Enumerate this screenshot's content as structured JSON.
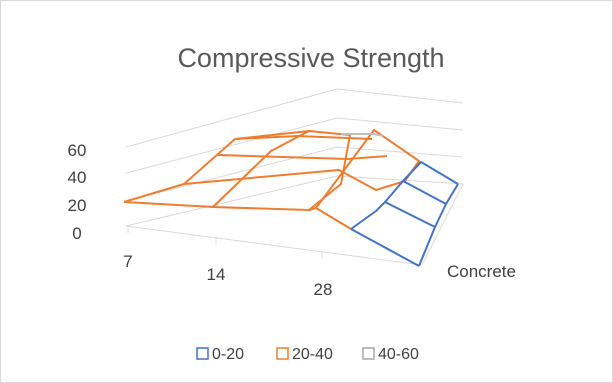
{
  "chart_data": {
    "type": "3d-surface",
    "title": "Compressive Strength",
    "x_categories": [
      "7",
      "14",
      "28"
    ],
    "series_label": "Concrete",
    "z_ticks": [
      "0",
      "20",
      "40",
      "60"
    ],
    "zlim": [
      0,
      60
    ],
    "legend": [
      {
        "label": "0-20",
        "color": "#4472c4"
      },
      {
        "label": "20-40",
        "color": "#ed7d31"
      },
      {
        "label": "40-60",
        "color": "#a5a5a5"
      }
    ],
    "grid": true,
    "legend_position": "bottom"
  }
}
